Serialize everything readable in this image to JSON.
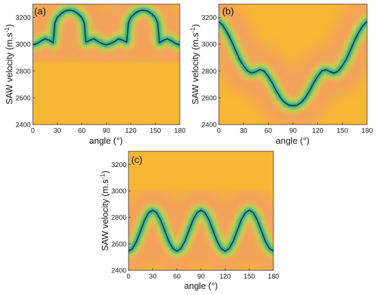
{
  "colors": {
    "background": "#f6b733",
    "wash": "#f08a8c",
    "glow_outer": "#d7e045",
    "glow_mid": "#72c66a",
    "glow_inner": "#22a99b",
    "curve": "#1b2f4a"
  },
  "chart_data": [
    {
      "type": "heatmap",
      "panel_label": "(a)",
      "xlabel": "angle (°)",
      "ylabel": "SAW velocity (m.s",
      "ylabel_sup": "-1",
      "ylabel_close": ")",
      "xlim": [
        0,
        180
      ],
      "ylim": [
        2400,
        3300
      ],
      "xticks": [
        0,
        30,
        60,
        90,
        120,
        150,
        180
      ],
      "yticks": [
        2400,
        2600,
        2800,
        3000,
        3200
      ],
      "grid": false,
      "curve": {
        "x": [
          0,
          5,
          10,
          15,
          20,
          25,
          27,
          30,
          35,
          40,
          45,
          50,
          55,
          60,
          63,
          65,
          70,
          75,
          80,
          85,
          90,
          95,
          100,
          105,
          110,
          115,
          117,
          120,
          125,
          130,
          135,
          140,
          145,
          150,
          153,
          155,
          160,
          165,
          170,
          175,
          180
        ],
        "y": [
          2995,
          3005,
          3025,
          3040,
          3030,
          3010,
          3160,
          3200,
          3230,
          3250,
          3255,
          3250,
          3230,
          3200,
          3160,
          3015,
          3030,
          3040,
          3020,
          3005,
          2995,
          3005,
          3020,
          3040,
          3030,
          3015,
          3160,
          3200,
          3230,
          3250,
          3255,
          3250,
          3230,
          3200,
          3160,
          3010,
          3030,
          3040,
          3025,
          3005,
          2995
        ]
      }
    },
    {
      "type": "heatmap",
      "panel_label": "(b)",
      "xlabel": "angle (°)",
      "ylabel": "SAW velocity (m.s",
      "ylabel_sup": "-1",
      "ylabel_close": ")",
      "xlim": [
        0,
        180
      ],
      "ylim": [
        2400,
        3300
      ],
      "xticks": [
        0,
        30,
        60,
        90,
        120,
        150,
        180
      ],
      "yticks": [
        2400,
        2600,
        2800,
        3000,
        3200
      ],
      "grid": false,
      "curve": {
        "x": [
          0,
          5,
          10,
          15,
          20,
          25,
          30,
          35,
          40,
          45,
          50,
          55,
          60,
          65,
          70,
          75,
          80,
          85,
          90,
          95,
          100,
          105,
          110,
          115,
          120,
          125,
          130,
          135,
          140,
          145,
          150,
          155,
          160,
          165,
          170,
          175,
          180
        ],
        "y": [
          3170,
          3140,
          3090,
          3030,
          2960,
          2890,
          2840,
          2800,
          2785,
          2795,
          2810,
          2800,
          2760,
          2710,
          2650,
          2600,
          2565,
          2545,
          2540,
          2545,
          2565,
          2600,
          2650,
          2710,
          2760,
          2800,
          2810,
          2795,
          2785,
          2800,
          2840,
          2890,
          2960,
          3030,
          3090,
          3140,
          3170
        ]
      }
    },
    {
      "type": "heatmap",
      "panel_label": "(c)",
      "xlabel": "angle (°)",
      "ylabel": "SAW velocity (m.s",
      "ylabel_sup": "-1",
      "ylabel_close": ")",
      "xlim": [
        0,
        180
      ],
      "ylim": [
        2400,
        3300
      ],
      "xticks": [
        0,
        30,
        60,
        90,
        120,
        150,
        180
      ],
      "yticks": [
        2400,
        2600,
        2800,
        3000,
        3200
      ],
      "grid": false,
      "curve": {
        "x": [
          0,
          5,
          10,
          15,
          20,
          25,
          30,
          35,
          40,
          45,
          50,
          55,
          60,
          65,
          70,
          75,
          80,
          85,
          90,
          95,
          100,
          105,
          110,
          115,
          120,
          125,
          130,
          135,
          140,
          145,
          150,
          155,
          160,
          165,
          170,
          175,
          180
        ],
        "y": [
          2545,
          2565,
          2620,
          2700,
          2780,
          2835,
          2855,
          2835,
          2780,
          2700,
          2620,
          2565,
          2545,
          2565,
          2620,
          2700,
          2780,
          2835,
          2855,
          2835,
          2780,
          2700,
          2620,
          2565,
          2545,
          2565,
          2620,
          2700,
          2780,
          2835,
          2855,
          2835,
          2780,
          2700,
          2620,
          2565,
          2545
        ]
      }
    }
  ]
}
